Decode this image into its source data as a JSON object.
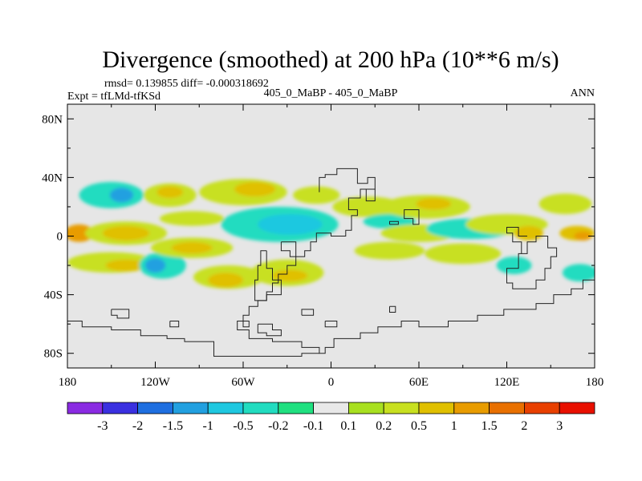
{
  "chart_data": {
    "type": "heatmap",
    "title": "Divergence (smoothed) at 200 hPa (10**6 m/s)",
    "stats_line": "rmsd= 0.139855 diff= -0.000318692",
    "left_label": "Expt = tfLMd-tfKSd",
    "center_label": "405_0_MaBP - 405_0_MaBP",
    "right_label": "ANN",
    "x_ticks": [
      {
        "value": -180,
        "label": "180"
      },
      {
        "value": -120,
        "label": "120W"
      },
      {
        "value": -60,
        "label": "60W"
      },
      {
        "value": 0,
        "label": "0"
      },
      {
        "value": 60,
        "label": "60E"
      },
      {
        "value": 120,
        "label": "120E"
      },
      {
        "value": 180,
        "label": "180"
      }
    ],
    "y_ticks": [
      {
        "value": 80,
        "label": "80N"
      },
      {
        "value": 40,
        "label": "40N"
      },
      {
        "value": 0,
        "label": "0"
      },
      {
        "value": -40,
        "label": "40S"
      },
      {
        "value": -80,
        "label": "80S"
      }
    ],
    "xlim": [
      -180,
      180
    ],
    "ylim": [
      -90,
      90
    ],
    "colorbar": {
      "colors": [
        "#8a2be2",
        "#3a30e0",
        "#1f6fe0",
        "#22a0e0",
        "#1fc8e0",
        "#22dcc0",
        "#20e080",
        "#e8e8e8",
        "#a8e020",
        "#c8e020",
        "#e0c000",
        "#e89c00",
        "#e87000",
        "#e84000",
        "#e81000"
      ],
      "labels": [
        "-3",
        "-2",
        "-1.5",
        "-1",
        "-0.5",
        "-0.2",
        "-0.1",
        "0.1",
        "0.2",
        "0.5",
        "1",
        "1.5",
        "2",
        "3"
      ]
    },
    "blobs": [
      {
        "lon": -172,
        "lat": 2,
        "rlon": 10,
        "rlat": 6,
        "c": 11
      },
      {
        "lon": -140,
        "lat": 2,
        "rlon": 28,
        "rlat": 8,
        "c": 9
      },
      {
        "lon": -140,
        "lat": 2,
        "rlon": 16,
        "rlat": 5,
        "c": 10
      },
      {
        "lon": -150,
        "lat": -18,
        "rlon": 30,
        "rlat": 7,
        "c": 9
      },
      {
        "lon": -140,
        "lat": -20,
        "rlon": 14,
        "rlat": 4,
        "c": 10
      },
      {
        "lon": -150,
        "lat": 28,
        "rlon": 22,
        "rlat": 9,
        "c": 5
      },
      {
        "lon": -143,
        "lat": 28,
        "rlon": 8,
        "rlat": 5,
        "c": 3
      },
      {
        "lon": -115,
        "lat": -20,
        "rlon": 16,
        "rlat": 9,
        "c": 5
      },
      {
        "lon": -120,
        "lat": -20,
        "rlon": 7,
        "rlat": 5,
        "c": 3
      },
      {
        "lon": -110,
        "lat": 28,
        "rlon": 18,
        "rlat": 8,
        "c": 9
      },
      {
        "lon": -110,
        "lat": 30,
        "rlon": 9,
        "rlat": 4,
        "c": 10
      },
      {
        "lon": -95,
        "lat": 12,
        "rlon": 22,
        "rlat": 5,
        "c": 9
      },
      {
        "lon": -95,
        "lat": -8,
        "rlon": 28,
        "rlat": 7,
        "c": 9
      },
      {
        "lon": -95,
        "lat": -8,
        "rlon": 14,
        "rlat": 4,
        "c": 10
      },
      {
        "lon": -70,
        "lat": -28,
        "rlon": 24,
        "rlat": 8,
        "c": 9
      },
      {
        "lon": -72,
        "lat": -30,
        "rlon": 12,
        "rlat": 5,
        "c": 10
      },
      {
        "lon": -60,
        "lat": 30,
        "rlon": 30,
        "rlat": 9,
        "c": 9
      },
      {
        "lon": -52,
        "lat": 32,
        "rlon": 14,
        "rlat": 5,
        "c": 10
      },
      {
        "lon": -35,
        "lat": 8,
        "rlon": 40,
        "rlat": 12,
        "c": 5
      },
      {
        "lon": -28,
        "lat": 8,
        "rlon": 22,
        "rlat": 7,
        "c": 4
      },
      {
        "lon": -30,
        "lat": -25,
        "rlon": 25,
        "rlat": 9,
        "c": 9
      },
      {
        "lon": -28,
        "lat": -27,
        "rlon": 12,
        "rlat": 4,
        "c": 10
      },
      {
        "lon": -10,
        "lat": 28,
        "rlon": 16,
        "rlat": 6,
        "c": 9
      },
      {
        "lon": 25,
        "lat": 20,
        "rlon": 24,
        "rlat": 7,
        "c": 9
      },
      {
        "lon": 40,
        "lat": 10,
        "rlon": 18,
        "rlat": 5,
        "c": 5
      },
      {
        "lon": 40,
        "lat": -10,
        "rlon": 24,
        "rlat": 6,
        "c": 9
      },
      {
        "lon": 65,
        "lat": 20,
        "rlon": 30,
        "rlat": 8,
        "c": 9
      },
      {
        "lon": 70,
        "lat": 22,
        "rlon": 12,
        "rlat": 4,
        "c": 10
      },
      {
        "lon": 60,
        "lat": 2,
        "rlon": 26,
        "rlat": 6,
        "c": 9
      },
      {
        "lon": 95,
        "lat": 5,
        "rlon": 30,
        "rlat": 7,
        "c": 5
      },
      {
        "lon": 90,
        "lat": -12,
        "rlon": 26,
        "rlat": 7,
        "c": 9
      },
      {
        "lon": 120,
        "lat": 8,
        "rlon": 28,
        "rlat": 7,
        "c": 9
      },
      {
        "lon": 135,
        "lat": 2,
        "rlon": 10,
        "rlat": 5,
        "c": 10
      },
      {
        "lon": 125,
        "lat": -20,
        "rlon": 12,
        "rlat": 6,
        "c": 5
      },
      {
        "lon": 160,
        "lat": 22,
        "rlon": 18,
        "rlat": 7,
        "c": 9
      },
      {
        "lon": 168,
        "lat": 2,
        "rlon": 12,
        "rlat": 5,
        "c": 10
      },
      {
        "lon": 172,
        "lat": 0,
        "rlon": 6,
        "rlat": 3,
        "c": 11
      },
      {
        "lon": 170,
        "lat": -25,
        "rlon": 12,
        "rlat": 6,
        "c": 5
      }
    ],
    "coastlines": [
      [
        [
          -8,
          30
        ],
        [
          -8,
          40
        ],
        [
          -4,
          40
        ],
        [
          -4,
          42
        ],
        [
          4,
          42
        ],
        [
          4,
          46
        ],
        [
          18,
          46
        ],
        [
          18,
          36
        ],
        [
          25,
          36
        ],
        [
          25,
          40
        ],
        [
          30,
          40
        ],
        [
          30,
          32
        ],
        [
          20,
          32
        ],
        [
          20,
          26
        ],
        [
          12,
          26
        ],
        [
          12,
          18
        ],
        [
          18,
          18
        ],
        [
          18,
          14
        ],
        [
          14,
          14
        ],
        [
          14,
          4
        ],
        [
          10,
          4
        ],
        [
          10,
          0
        ],
        [
          0,
          0
        ],
        [
          0,
          2
        ],
        [
          -10,
          2
        ],
        [
          -10,
          -4
        ],
        [
          -14,
          -4
        ],
        [
          -14,
          -10
        ],
        [
          -18,
          -10
        ],
        [
          -18,
          -14
        ],
        [
          -24,
          -14
        ],
        [
          -24,
          -20
        ],
        [
          -30,
          -20
        ],
        [
          -30,
          -26
        ],
        [
          -36,
          -26
        ],
        [
          -36,
          -32
        ],
        [
          -40,
          -32
        ],
        [
          -40,
          -38
        ],
        [
          -44,
          -38
        ],
        [
          -44,
          -44
        ],
        [
          -50,
          -44
        ],
        [
          -50,
          -48
        ],
        [
          -56,
          -48
        ],
        [
          -56,
          -54
        ],
        [
          -60,
          -54
        ],
        [
          -60,
          -58
        ],
        [
          -64,
          -58
        ],
        [
          -64,
          -64
        ],
        [
          -56,
          -64
        ],
        [
          -56,
          -70
        ],
        [
          -40,
          -70
        ],
        [
          -40,
          -72
        ],
        [
          -20,
          -72
        ],
        [
          -20,
          -76
        ],
        [
          -8,
          -76
        ],
        [
          -8,
          -80
        ],
        [
          -4,
          -80
        ],
        [
          -4,
          -76
        ],
        [
          2,
          -76
        ],
        [
          2,
          -70
        ],
        [
          20,
          -70
        ],
        [
          20,
          -66
        ],
        [
          32,
          -66
        ],
        [
          32,
          -62
        ],
        [
          48,
          -62
        ],
        [
          48,
          -58
        ],
        [
          60,
          -58
        ],
        [
          60,
          -62
        ],
        [
          80,
          -62
        ],
        [
          80,
          -58
        ],
        [
          100,
          -58
        ],
        [
          100,
          -54
        ],
        [
          118,
          -54
        ],
        [
          118,
          -50
        ],
        [
          140,
          -50
        ],
        [
          140,
          -46
        ],
        [
          152,
          -46
        ],
        [
          152,
          -40
        ],
        [
          164,
          -40
        ],
        [
          164,
          -36
        ],
        [
          172,
          -36
        ],
        [
          172,
          -30
        ],
        [
          180,
          -30
        ]
      ],
      [
        [
          120,
          -30
        ],
        [
          120,
          -22
        ],
        [
          128,
          -22
        ],
        [
          128,
          -12
        ],
        [
          134,
          -12
        ],
        [
          134,
          -4
        ],
        [
          140,
          -4
        ],
        [
          140,
          0
        ],
        [
          148,
          0
        ],
        [
          148,
          -8
        ],
        [
          154,
          -8
        ],
        [
          154,
          -14
        ],
        [
          150,
          -14
        ],
        [
          150,
          -22
        ],
        [
          146,
          -22
        ],
        [
          146,
          -30
        ],
        [
          140,
          -30
        ],
        [
          140,
          -36
        ],
        [
          124,
          -36
        ],
        [
          124,
          -32
        ],
        [
          120,
          -32
        ],
        [
          120,
          -30
        ]
      ],
      [
        [
          -44,
          -10
        ],
        [
          -44,
          -22
        ],
        [
          -40,
          -22
        ],
        [
          -40,
          -30
        ],
        [
          -34,
          -30
        ],
        [
          -34,
          -40
        ],
        [
          -44,
          -40
        ],
        [
          -44,
          -44
        ],
        [
          -52,
          -44
        ],
        [
          -52,
          -30
        ],
        [
          -50,
          -30
        ],
        [
          -50,
          -20
        ],
        [
          -48,
          -20
        ],
        [
          -48,
          -10
        ],
        [
          -44,
          -10
        ]
      ],
      [
        [
          -34,
          -4
        ],
        [
          -34,
          -10
        ],
        [
          -28,
          -10
        ],
        [
          -28,
          -14
        ],
        [
          -24,
          -14
        ],
        [
          -24,
          -4
        ],
        [
          -34,
          -4
        ]
      ],
      [
        [
          40,
          8
        ],
        [
          40,
          10
        ],
        [
          46,
          10
        ],
        [
          46,
          8
        ],
        [
          40,
          8
        ]
      ],
      [
        [
          -20,
          -54
        ],
        [
          -20,
          -50
        ],
        [
          -12,
          -50
        ],
        [
          -12,
          -54
        ],
        [
          -20,
          -54
        ]
      ],
      [
        [
          -150,
          -50
        ],
        [
          -150,
          -54
        ],
        [
          -146,
          -54
        ],
        [
          -146,
          -56
        ],
        [
          -138,
          -56
        ],
        [
          -138,
          -50
        ],
        [
          -150,
          -50
        ]
      ],
      [
        [
          -110,
          -58
        ],
        [
          -110,
          -62
        ],
        [
          -104,
          -62
        ],
        [
          -104,
          -58
        ],
        [
          -110,
          -58
        ]
      ],
      [
        [
          -60,
          -58
        ],
        [
          -60,
          -62
        ],
        [
          -56,
          -62
        ],
        [
          -56,
          -58
        ],
        [
          -60,
          -58
        ]
      ],
      [
        [
          -180,
          -54
        ],
        [
          -180,
          -58
        ],
        [
          -170,
          -58
        ],
        [
          -170,
          -62
        ],
        [
          -150,
          -62
        ],
        [
          -150,
          -64
        ],
        [
          -130,
          -64
        ],
        [
          -130,
          -68
        ],
        [
          -112,
          -68
        ],
        [
          -112,
          -70
        ],
        [
          -100,
          -70
        ],
        [
          -100,
          -72
        ],
        [
          -80,
          -72
        ],
        [
          -80,
          -82
        ],
        [
          -20,
          -82
        ],
        [
          -20,
          -80
        ],
        [
          -8,
          -80
        ]
      ],
      [
        [
          -50,
          -60
        ],
        [
          -50,
          -66
        ],
        [
          -44,
          -66
        ],
        [
          -44,
          -68
        ],
        [
          -34,
          -68
        ],
        [
          -34,
          -64
        ],
        [
          -40,
          -64
        ],
        [
          -40,
          -60
        ],
        [
          -50,
          -60
        ]
      ],
      [
        [
          -4,
          -58
        ],
        [
          -4,
          -62
        ],
        [
          4,
          -62
        ],
        [
          4,
          -58
        ],
        [
          -4,
          -58
        ]
      ],
      [
        [
          40,
          -48
        ],
        [
          40,
          -52
        ],
        [
          44,
          -52
        ],
        [
          44,
          -48
        ],
        [
          40,
          -48
        ]
      ],
      [
        [
          130,
          -12
        ],
        [
          130,
          -4
        ],
        [
          124,
          -4
        ],
        [
          124,
          2
        ],
        [
          120,
          2
        ],
        [
          120,
          6
        ],
        [
          128,
          6
        ],
        [
          128,
          0
        ],
        [
          134,
          0
        ]
      ],
      [
        [
          60,
          14
        ],
        [
          60,
          18
        ],
        [
          50,
          18
        ],
        [
          50,
          12
        ],
        [
          56,
          12
        ],
        [
          56,
          8
        ],
        [
          60,
          8
        ],
        [
          60,
          14
        ]
      ],
      [
        [
          24,
          26
        ],
        [
          24,
          32
        ],
        [
          30,
          32
        ],
        [
          30,
          24
        ],
        [
          24,
          24
        ],
        [
          24,
          26
        ]
      ]
    ]
  }
}
